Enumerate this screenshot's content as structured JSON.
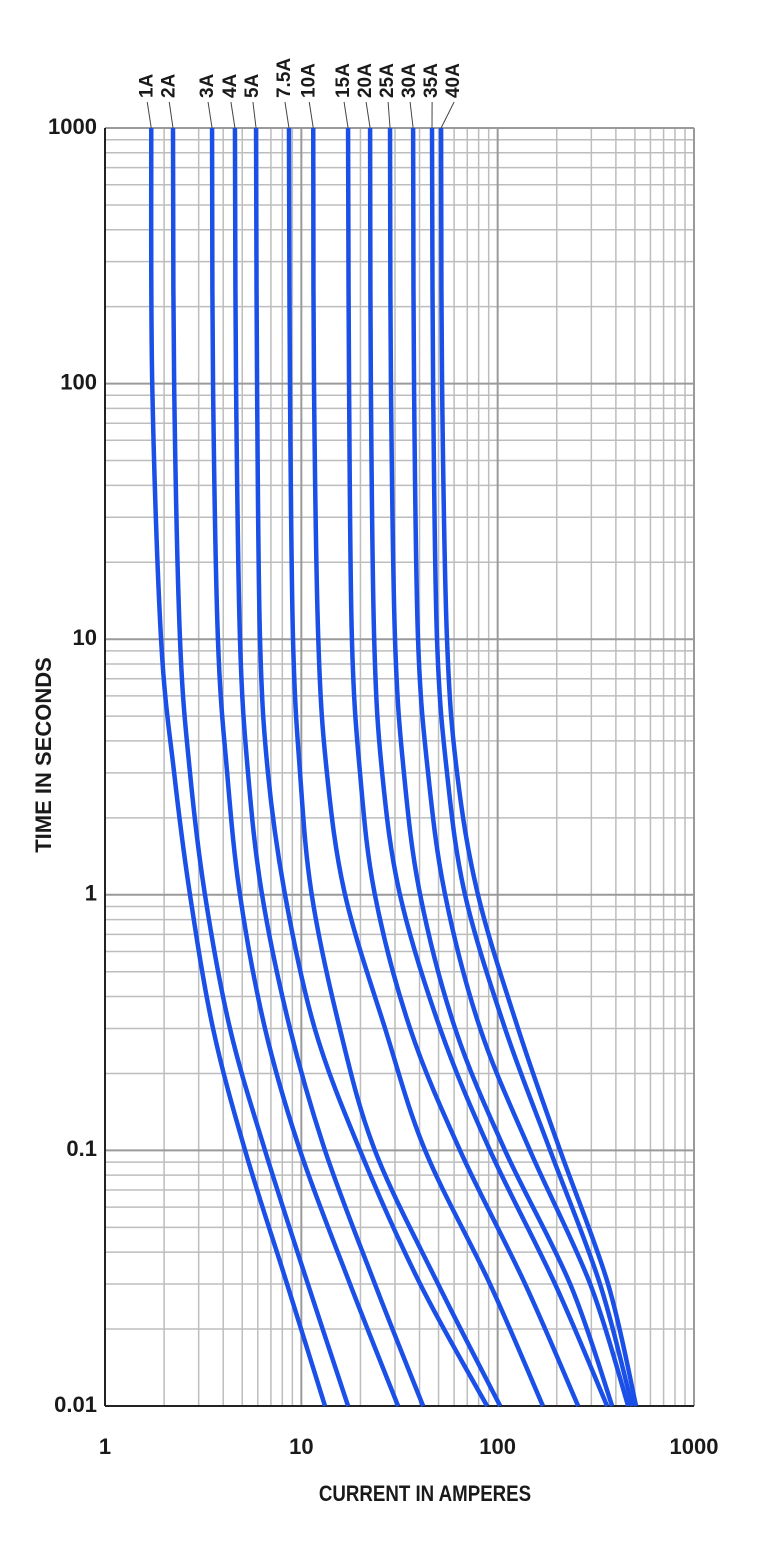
{
  "chart_data": {
    "type": "line",
    "xlabel": "CURRENT IN AMPERES",
    "ylabel": "TIME IN SECONDS",
    "xlog": true,
    "ylog": true,
    "grid": true,
    "minor_grid": true,
    "xlim": [
      1,
      1000
    ],
    "xticks": [
      1,
      10,
      100,
      1000
    ],
    "ylim": [
      0.01,
      1000
    ],
    "yticks": [
      0.01,
      0.1,
      1,
      10,
      100,
      1000
    ],
    "series": [
      {
        "name": "1A",
        "color": "#1a4fe8",
        "x": [
          1.72,
          1.74,
          1.93,
          2.25,
          2.71,
          3.55,
          5.17,
          8.46,
          13.2
        ],
        "values": [
          1000,
          100,
          10,
          3,
          1,
          0.3,
          0.1,
          0.03,
          0.01
        ]
      },
      {
        "name": "2A",
        "color": "#1a4fe8",
        "x": [
          2.22,
          2.25,
          2.41,
          2.71,
          3.23,
          4.33,
          6.53,
          10.8,
          17.3
        ],
        "values": [
          1000,
          100,
          10,
          3,
          1,
          0.3,
          0.1,
          0.03,
          0.01
        ]
      },
      {
        "name": "3A",
        "color": "#1a4fe8",
        "x": [
          3.51,
          3.55,
          3.76,
          4.19,
          4.87,
          6.53,
          9.85,
          17.7,
          31.1
        ],
        "values": [
          1000,
          100,
          10,
          3,
          1,
          0.3,
          0.1,
          0.03,
          0.01
        ]
      },
      {
        "name": "4A",
        "color": "#1a4fe8",
        "x": [
          4.59,
          4.65,
          4.87,
          5.35,
          6.31,
          8.75,
          13.2,
          23.7,
          41.7
        ],
        "values": [
          1000,
          100,
          10,
          3,
          1,
          0.3,
          0.1,
          0.03,
          0.01
        ]
      },
      {
        "name": "5A",
        "color": "#1a4fe8",
        "x": [
          5.88,
          5.95,
          6.16,
          6.76,
          8.26,
          11.7,
          19.9,
          40.3,
          88.3
        ],
        "values": [
          1000,
          100,
          10,
          3,
          1,
          0.3,
          0.1,
          0.03,
          0.01
        ]
      },
      {
        "name": "7.5A",
        "color": "#1a4fe8",
        "x": [
          8.65,
          8.75,
          9.07,
          9.85,
          11.3,
          15.7,
          23.7,
          49.7,
          103
        ],
        "values": [
          1000,
          100,
          10,
          3,
          1,
          0.3,
          0.1,
          0.03,
          0.01
        ]
      },
      {
        "name": "10A",
        "color": "#1a4fe8",
        "x": [
          11.5,
          11.6,
          12.2,
          13.5,
          16.7,
          26.7,
          42.7,
          91.4,
          170
        ],
        "values": [
          1000,
          100,
          10,
          3,
          1,
          0.3,
          0.1,
          0.03,
          0.01
        ]
      },
      {
        "name": "15A",
        "color": "#1a4fe8",
        "x": [
          17.3,
          17.5,
          18.1,
          19.9,
          23.7,
          35.8,
          64.3,
          138,
          257
        ],
        "values": [
          1000,
          100,
          10,
          3,
          1,
          0.3,
          0.1,
          0.03,
          0.01
        ]
      },
      {
        "name": "20A",
        "color": "#1a4fe8",
        "x": [
          22.4,
          22.6,
          23.5,
          25.8,
          31.8,
          50.9,
          91.4,
          196,
          361
        ],
        "values": [
          1000,
          100,
          10,
          3,
          1,
          0.3,
          0.1,
          0.03,
          0.01
        ]
      },
      {
        "name": "25A",
        "color": "#1a4fe8",
        "x": [
          28.3,
          28.6,
          30.0,
          33.3,
          40.3,
          60.7,
          109,
          234,
          383
        ],
        "values": [
          1000,
          100,
          10,
          3,
          1,
          0.3,
          0.1,
          0.03,
          0.01
        ]
      },
      {
        "name": "30A",
        "color": "#1a4fe8",
        "x": [
          37.1,
          37.5,
          39.3,
          44.2,
          54.0,
          81.4,
          146,
          296,
          462
        ],
        "values": [
          1000,
          100,
          10,
          3,
          1,
          0.3,
          0.1,
          0.03,
          0.01
        ]
      },
      {
        "name": "35A",
        "color": "#1a4fe8",
        "x": [
          46.3,
          46.9,
          49.1,
          55.2,
          68.2,
          109,
          185,
          332,
          484
        ],
        "values": [
          1000,
          100,
          10,
          3,
          1,
          0.3,
          0.1,
          0.03,
          0.01
        ]
      },
      {
        "name": "40A",
        "color": "#1a4fe8",
        "x": [
          51.5,
          52.1,
          55.2,
          62.1,
          79.4,
          127,
          208,
          365,
          507
        ],
        "values": [
          1000,
          100,
          10,
          3,
          1,
          0.3,
          0.1,
          0.03,
          0.01
        ]
      }
    ]
  }
}
